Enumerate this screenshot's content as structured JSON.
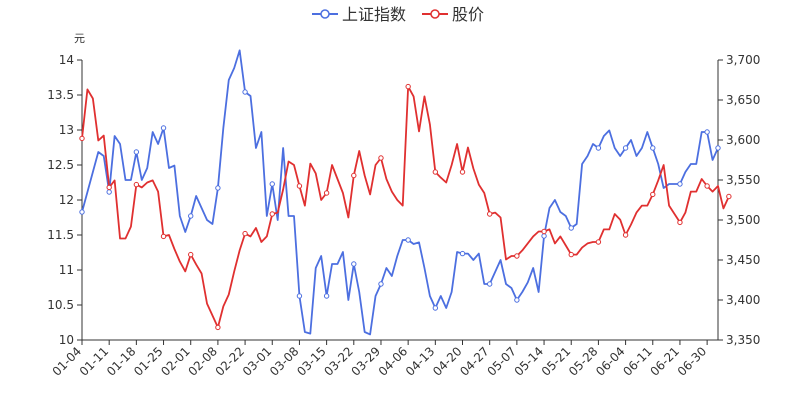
{
  "chart_data": {
    "type": "line",
    "left_axis": {
      "unit": "元",
      "ylim": [
        10,
        14
      ],
      "ticks": [
        "10",
        "10.5",
        "11",
        "11.5",
        "12",
        "12.5",
        "13",
        "13.5",
        "14"
      ]
    },
    "right_axis": {
      "ylim": [
        3350,
        3700
      ],
      "ticks": [
        "3,350",
        "3,400",
        "3,450",
        "3,500",
        "3,550",
        "3,600",
        "3,650",
        "3,700"
      ]
    },
    "grid": false,
    "legend_position": "top-center",
    "x_tick_labels": [
      "01-04",
      "01-11",
      "01-18",
      "01-25",
      "02-01",
      "02-08",
      "02-22",
      "03-01",
      "03-08",
      "03-15",
      "03-22",
      "03-29",
      "04-06",
      "04-13",
      "04-20",
      "04-27",
      "05-07",
      "05-14",
      "05-21",
      "05-28",
      "06-04",
      "06-11",
      "06-21",
      "06-30"
    ],
    "x_tick_index": [
      0,
      5,
      10,
      15,
      20,
      25,
      30,
      35,
      40,
      45,
      50,
      55,
      60,
      65,
      70,
      75,
      80,
      85,
      90,
      95,
      100,
      105,
      110,
      115
    ],
    "series": [
      {
        "name": "上证指数",
        "axis": "right",
        "color": "#4c6fe0",
        "values": [
          3510,
          3535,
          3560,
          3585,
          3580,
          3535,
          3605,
          3595,
          3550,
          3550,
          3585,
          3550,
          3565,
          3610,
          3595,
          3615,
          3565,
          3568,
          3505,
          3485,
          3505,
          3530,
          3515,
          3500,
          3495,
          3540,
          3615,
          3675,
          3690,
          3712,
          3660,
          3655,
          3590,
          3610,
          3505,
          3545,
          3500,
          3590,
          3505,
          3505,
          3405,
          3360,
          3358,
          3440,
          3455,
          3405,
          3445,
          3445,
          3460,
          3400,
          3445,
          3410,
          3360,
          3357,
          3405,
          3420,
          3440,
          3430,
          3455,
          3475,
          3475,
          3470,
          3472,
          3440,
          3405,
          3390,
          3405,
          3390,
          3410,
          3460,
          3458,
          3458,
          3450,
          3458,
          3420,
          3420,
          3435,
          3450,
          3420,
          3415,
          3400,
          3410,
          3422,
          3440,
          3410,
          3480,
          3515,
          3525,
          3510,
          3505,
          3490,
          3495,
          3570,
          3580,
          3595,
          3590,
          3605,
          3612,
          3590,
          3580,
          3590,
          3600,
          3580,
          3590,
          3610,
          3590,
          3570,
          3540,
          3545,
          3545,
          3545,
          3560,
          3570,
          3570,
          3610,
          3610,
          3575,
          3590
        ]
      },
      {
        "name": "股价",
        "axis": "left",
        "color": "#e03030",
        "values": [
          12.88,
          13.58,
          13.45,
          12.85,
          12.92,
          12.18,
          12.28,
          11.45,
          11.45,
          11.62,
          12.22,
          12.18,
          12.25,
          12.28,
          12.12,
          11.48,
          11.5,
          11.3,
          11.12,
          10.98,
          11.22,
          11.08,
          10.95,
          10.52,
          10.35,
          10.18,
          10.48,
          10.65,
          10.98,
          11.28,
          11.52,
          11.48,
          11.6,
          11.4,
          11.48,
          11.8,
          11.82,
          12.15,
          12.55,
          12.5,
          12.2,
          11.92,
          12.52,
          12.38,
          12.0,
          12.1,
          12.5,
          12.3,
          12.1,
          11.75,
          12.35,
          12.7,
          12.35,
          12.08,
          12.5,
          12.6,
          12.3,
          12.12,
          12.0,
          11.92,
          13.62,
          13.48,
          12.98,
          13.48,
          13.08,
          12.4,
          12.32,
          12.25,
          12.5,
          12.8,
          12.4,
          12.75,
          12.45,
          12.22,
          12.1,
          11.8,
          11.82,
          11.75,
          11.15,
          11.2,
          11.2,
          11.28,
          11.38,
          11.48,
          11.55,
          11.55,
          11.58,
          11.38,
          11.48,
          11.35,
          11.22,
          11.22,
          11.32,
          11.38,
          11.4,
          11.4,
          11.58,
          11.58,
          11.8,
          11.72,
          11.5,
          11.65,
          11.82,
          11.92,
          11.92,
          12.08,
          12.28,
          12.5,
          11.92,
          11.8,
          11.68,
          11.82,
          12.12,
          12.12,
          12.3,
          12.2,
          12.12,
          12.2,
          11.88,
          12.05
        ]
      }
    ]
  }
}
